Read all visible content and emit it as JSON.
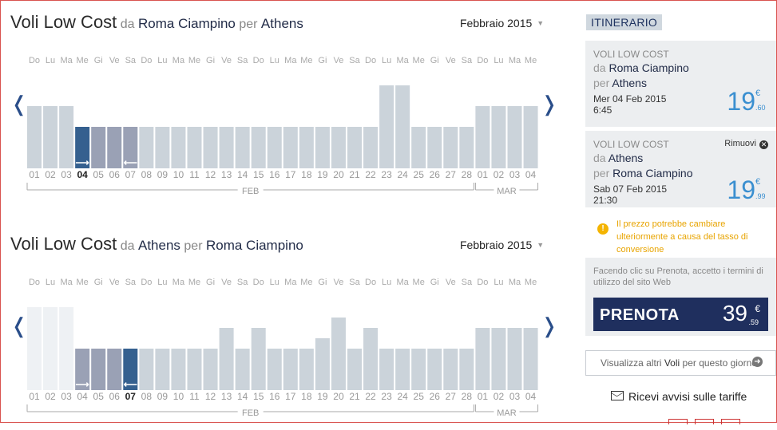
{
  "outbound": {
    "title_main": "Voli Low Cost",
    "from_prep": "da",
    "from": "Roma Ciampino",
    "to_prep": "per",
    "to": "Athens",
    "month_selector": "Febbraio 2015",
    "weekdays": [
      "Do",
      "Lu",
      "Ma",
      "Me",
      "Gi",
      "Ve",
      "Sa",
      "Do",
      "Lu",
      "Ma",
      "Me",
      "Gi",
      "Ve",
      "Sa",
      "Do",
      "Lu",
      "Ma",
      "Me",
      "Gi",
      "Ve",
      "Sa",
      "Do",
      "Lu",
      "Ma",
      "Me",
      "Gi",
      "Ve",
      "Sa",
      "Do",
      "Lu",
      "Ma",
      "Me"
    ],
    "days": [
      "01",
      "02",
      "03",
      "04",
      "05",
      "06",
      "07",
      "08",
      "09",
      "10",
      "11",
      "12",
      "13",
      "14",
      "15",
      "16",
      "17",
      "18",
      "19",
      "20",
      "21",
      "22",
      "23",
      "24",
      "25",
      "26",
      "27",
      "28",
      "01",
      "02",
      "03",
      "04"
    ],
    "levels": [
      3,
      3,
      3,
      2,
      2,
      2,
      2,
      2,
      2,
      2,
      2,
      2,
      2,
      2,
      2,
      2,
      2,
      2,
      2,
      2,
      2,
      2,
      4,
      4,
      2,
      2,
      2,
      2,
      3,
      3,
      3,
      3
    ],
    "states": [
      "n",
      "n",
      "n",
      "sel-out",
      "range",
      "range",
      "range-end",
      "n",
      "n",
      "n",
      "n",
      "n",
      "n",
      "n",
      "n",
      "n",
      "n",
      "n",
      "n",
      "n",
      "n",
      "n",
      "n",
      "n",
      "n",
      "n",
      "n",
      "n",
      "n",
      "n",
      "n",
      "n"
    ],
    "month_labels": [
      "FEB",
      "MAR"
    ],
    "bold_day_index": 3
  },
  "return": {
    "title_main": "Voli Low Cost",
    "from_prep": "da",
    "from": "Athens",
    "to_prep": "per",
    "to": "Roma Ciampino",
    "month_selector": "Febbraio 2015",
    "weekdays": [
      "Do",
      "Lu",
      "Ma",
      "Me",
      "Gi",
      "Ve",
      "Sa",
      "Do",
      "Lu",
      "Ma",
      "Me",
      "Gi",
      "Ve",
      "Sa",
      "Do",
      "Lu",
      "Ma",
      "Me",
      "Gi",
      "Ve",
      "Sa",
      "Do",
      "Lu",
      "Ma",
      "Me",
      "Gi",
      "Ve",
      "Sa",
      "Do",
      "Lu",
      "Ma",
      "Me"
    ],
    "days": [
      "01",
      "02",
      "03",
      "04",
      "05",
      "06",
      "07",
      "08",
      "09",
      "10",
      "11",
      "12",
      "13",
      "14",
      "15",
      "16",
      "17",
      "18",
      "19",
      "20",
      "21",
      "22",
      "23",
      "24",
      "25",
      "26",
      "27",
      "28",
      "01",
      "02",
      "03",
      "04"
    ],
    "levels": [
      4,
      4,
      4,
      2,
      2,
      2,
      2,
      2,
      2,
      2,
      2,
      2,
      3,
      2,
      3,
      2,
      2,
      2,
      2.5,
      3.5,
      2,
      3,
      2,
      2,
      2,
      2,
      2,
      2,
      3,
      3,
      3,
      3
    ],
    "states": [
      "na",
      "na",
      "na",
      "range-start",
      "range",
      "range",
      "sel-ret",
      "n",
      "n",
      "n",
      "n",
      "n",
      "n",
      "n",
      "n",
      "n",
      "n",
      "n",
      "n",
      "n",
      "n",
      "n",
      "n",
      "n",
      "n",
      "n",
      "n",
      "n",
      "n",
      "n",
      "n",
      "n"
    ],
    "month_labels": [
      "FEB",
      "MAR"
    ],
    "bold_day_index": 6
  },
  "itinerary": {
    "header": "ITINERARIO",
    "leg1": {
      "label": "VOLI LOW COST",
      "from_prep": "da",
      "from": "Roma Ciampino",
      "to_prep": "per",
      "to": "Athens",
      "date": "Mer 04 Feb 2015",
      "time": "6:45",
      "price_int": "19",
      "price_cur": "€",
      "price_dec": ".60"
    },
    "leg2": {
      "label": "VOLI LOW COST",
      "remove": "Rimuovi",
      "from_prep": "da",
      "from": "Athens",
      "to_prep": "per",
      "to": "Roma Ciampino",
      "date": "Sab 07 Feb 2015",
      "time": "21:30",
      "price_int": "19",
      "price_cur": "€",
      "price_dec": ".99"
    },
    "warning": "Il prezzo potrebbe cambiare ulteriormente a causa del tasso di conversione",
    "terms": "Facendo clic su Prenota, accetto i termini di utilizzo del sito Web",
    "book_label": "PRENOTA",
    "book_price_int": "39",
    "book_price_cur": "€",
    "book_price_dec": ".59",
    "more_flights_pre": "Visualizza altri",
    "more_flights_bold": "Voli",
    "more_flights_post": "per questo giorno",
    "alerts": "Ricevi avvisi sulle tariffe"
  },
  "colors": {
    "bar": "#cbd3da",
    "bar_range": "#9aa1b5",
    "bar_selected": "#35608f",
    "bar_na": "#eef1f4",
    "accent": "#3a8fd0",
    "brand": "#1f2f5e"
  }
}
